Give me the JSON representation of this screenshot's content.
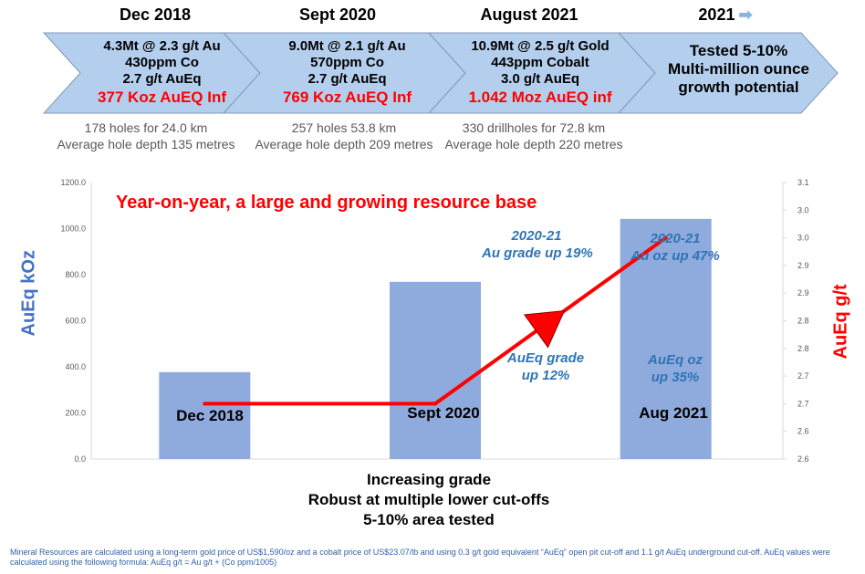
{
  "timeline": {
    "stages": [
      {
        "year": "Dec 2018",
        "lines": [
          "4.3Mt @ 2.3 g/t Au",
          "430ppm Co",
          "2.7 g/t AuEq"
        ],
        "highlight": "377 Koz AuEQ Inf",
        "stats": [
          "178 holes for 24.0 km",
          "Average hole depth 135 metres"
        ]
      },
      {
        "year": "Sept 2020",
        "lines": [
          "9.0Mt @ 2.1 g/t Au",
          "570ppm Co",
          "2.7 g/t AuEq"
        ],
        "highlight": "769 Koz AuEQ Inf",
        "stats": [
          "257 holes 53.8 km",
          "Average hole depth 209 metres"
        ]
      },
      {
        "year": "August 2021",
        "lines": [
          "10.9Mt @ 2.5 g/t Gold",
          "443ppm Cobalt",
          "3.0 g/t AuEq"
        ],
        "highlight": "1.042 Moz AuEQ inf",
        "stats": [
          "330 drillholes for 72.8 km",
          "Average hole depth 220 metres"
        ]
      }
    ],
    "future": {
      "year": "2021",
      "arrow_icon": "arrow-right-icon",
      "lines": [
        "Tested 5-10%",
        "Multi-million ounce",
        "growth potential"
      ]
    }
  },
  "chart_data": {
    "type": "bar",
    "title": "Year-on-year, a large and growing resource base",
    "categories": [
      "Dec 2018",
      "Sept 2020",
      "Aug 2021"
    ],
    "series": [
      {
        "name": "AuEq kOz",
        "type": "bar",
        "axis": "left",
        "values": [
          377,
          769,
          1042
        ]
      },
      {
        "name": "AuEq g/t",
        "type": "line",
        "axis": "right",
        "values": [
          2.7,
          2.7,
          3.0
        ]
      }
    ],
    "ylabel": "AuEq kOz",
    "ylabel_right": "AuEq g/t",
    "ylim": [
      0,
      1200
    ],
    "yticks": [
      "0.0",
      "200.0",
      "400.0",
      "600.0",
      "800.0",
      "1000.0",
      "1200.0"
    ],
    "ylim_right": [
      2.6,
      3.1
    ],
    "yticks_right": [
      "2.6",
      "2.6",
      "2.7",
      "2.7",
      "2.8",
      "2.8",
      "2.9",
      "2.9",
      "3.0",
      "3.0",
      "3.1"
    ],
    "colors": {
      "bar": "#8faadc",
      "line": "#ff0000",
      "title": "#ff0000",
      "annotation": "#2e75b6",
      "axis_title_left": "#4472c4",
      "axis_title_right": "#ff0000"
    },
    "annotations": [
      {
        "lines": [
          "2020-21",
          "Au grade up 19%"
        ]
      },
      {
        "lines": [
          "2020-21",
          "Au oz up 47%"
        ]
      },
      {
        "lines": [
          "AuEq grade",
          "up 12%"
        ]
      },
      {
        "lines": [
          "AuEq oz",
          "up 35%"
        ]
      }
    ]
  },
  "summary": [
    "Increasing grade",
    "Robust at multiple lower cut-offs",
    "5-10% area tested"
  ],
  "footnote": "Mineral Resources are calculated using a long-term gold price of US$1,590/oz and a cobalt price of US$23.07/lb and using 0.3 g/t gold equivalent “AuEq” open pit cut-off and 1.1 g/t AuEq underground cut-off. AuEq values were calculated using the following formula: AuEq g/t = Au g/t + (Co ppm/1005)"
}
